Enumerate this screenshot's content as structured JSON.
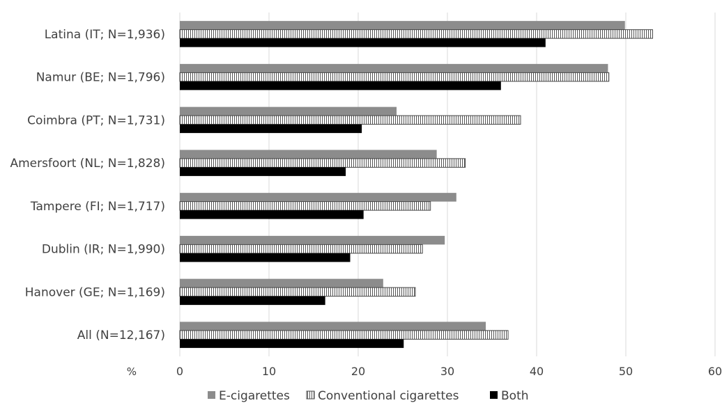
{
  "chart_data": {
    "type": "bar",
    "orientation": "horizontal",
    "categories": [
      "Latina (IT; N=1,936)",
      "Namur (BE; N=1,796)",
      "Coimbra (PT; N=1,731)",
      "Amersfoort (NL; N=1,828)",
      "Tampere (FI; N=1,717)",
      "Dublin (IR; N=1,990)",
      "Hanover (GE; N=1,169)",
      "All (N=12,167)"
    ],
    "series": [
      {
        "name": "E-cigarettes",
        "values": [
          49.9,
          48.0,
          24.3,
          28.8,
          31.0,
          29.7,
          22.8,
          34.3
        ],
        "color": "#8c8c8c"
      },
      {
        "name": "Conventional cigarettes",
        "values": [
          53.0,
          48.1,
          38.2,
          32.0,
          28.1,
          27.2,
          26.4,
          36.8
        ],
        "color": "#ffffff"
      },
      {
        "name": "Both",
        "values": [
          41.0,
          36.0,
          20.4,
          18.6,
          20.6,
          19.1,
          16.3,
          25.1
        ],
        "color": "#000000"
      }
    ],
    "xlim": [
      0,
      60
    ],
    "xticks": [
      "0",
      "10",
      "20",
      "30",
      "40",
      "50",
      "60"
    ],
    "xlabel": "%",
    "title": "",
    "ylabel": "",
    "grid": "vertical",
    "legend_position": "bottom"
  }
}
